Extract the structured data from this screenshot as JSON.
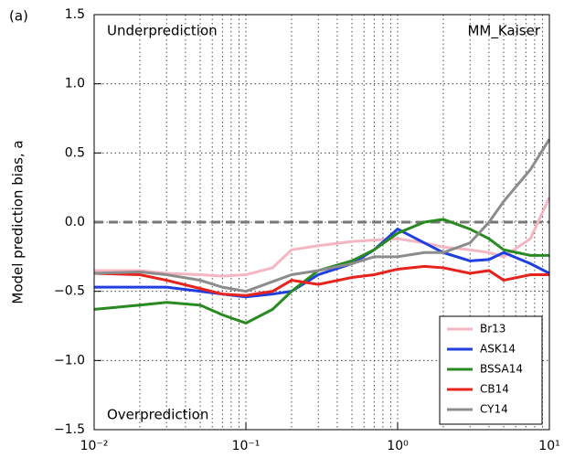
{
  "chart_data": {
    "type": "line",
    "panel_label": "(a)",
    "ylabel": "Model prediction bias, a",
    "annotations": [
      "Underprediction",
      "MM_Kaiser",
      "Overprediction"
    ],
    "log_x": true,
    "grid": true,
    "legend_loc": "lower right",
    "reference_line": 0,
    "xlim": [
      0.01,
      10
    ],
    "ylim": [
      -1.5,
      1.5
    ],
    "xticks": [
      {
        "value": 0.01,
        "label": "10⁻²"
      },
      {
        "value": 0.1,
        "label": "10⁻¹"
      },
      {
        "value": 1,
        "label": "10⁰"
      },
      {
        "value": 10,
        "label": "10¹"
      }
    ],
    "xminor_ticks": [
      0.02,
      0.03,
      0.04,
      0.05,
      0.06,
      0.07,
      0.08,
      0.09,
      0.2,
      0.3,
      0.4,
      0.5,
      0.6,
      0.7,
      0.8,
      0.9,
      2,
      3,
      4,
      5,
      6,
      7,
      8,
      9
    ],
    "yticks": [
      1.5,
      {
        "value": 1,
        "label": "1.0"
      },
      0.5,
      {
        "value": 0,
        "label": "0.0"
      },
      {
        "value": -0.5,
        "label": "−0.5"
      },
      {
        "value": -1,
        "label": "−1.0"
      },
      {
        "value": -1.5,
        "label": "−1.5"
      }
    ],
    "x": [
      0.01,
      0.02,
      0.03,
      0.05,
      0.07,
      0.1,
      0.15,
      0.2,
      0.3,
      0.5,
      0.7,
      1,
      1.5,
      2,
      3,
      4,
      5,
      7.5,
      10
    ],
    "series": [
      {
        "name": "Br13",
        "color": "#f4b6c2",
        "values": [
          -0.35,
          -0.35,
          -0.37,
          -0.38,
          -0.39,
          -0.38,
          -0.33,
          -0.2,
          -0.17,
          -0.14,
          -0.13,
          -0.12,
          -0.15,
          -0.18,
          -0.2,
          -0.22,
          -0.25,
          -0.12,
          0.18
        ]
      },
      {
        "name": "ASK14",
        "color": "#1f3fe0",
        "values": [
          -0.47,
          -0.47,
          -0.47,
          -0.5,
          -0.52,
          -0.54,
          -0.52,
          -0.5,
          -0.38,
          -0.3,
          -0.2,
          -0.05,
          -0.15,
          -0.22,
          -0.28,
          -0.27,
          -0.22,
          -0.3,
          -0.37
        ]
      },
      {
        "name": "BSSA14",
        "color": "#2a8a22",
        "values": [
          -0.63,
          -0.6,
          -0.58,
          -0.6,
          -0.67,
          -0.73,
          -0.63,
          -0.5,
          -0.35,
          -0.28,
          -0.2,
          -0.08,
          0.0,
          0.02,
          -0.05,
          -0.12,
          -0.2,
          -0.24,
          -0.24
        ]
      },
      {
        "name": "CB14",
        "color": "#e8221c",
        "values": [
          -0.37,
          -0.38,
          -0.42,
          -0.48,
          -0.52,
          -0.53,
          -0.5,
          -0.42,
          -0.45,
          -0.4,
          -0.38,
          -0.34,
          -0.32,
          -0.33,
          -0.37,
          -0.35,
          -0.42,
          -0.38,
          -0.38
        ]
      },
      {
        "name": "CY14",
        "color": "#8c8c8c",
        "values": [
          -0.37,
          -0.36,
          -0.38,
          -0.42,
          -0.47,
          -0.5,
          -0.43,
          -0.38,
          -0.35,
          -0.3,
          -0.25,
          -0.25,
          -0.22,
          -0.22,
          -0.15,
          0.0,
          0.15,
          0.38,
          0.6
        ]
      }
    ]
  }
}
